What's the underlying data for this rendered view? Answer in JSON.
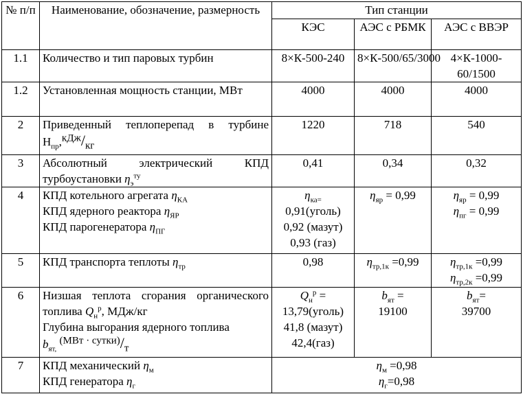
{
  "header": {
    "num": "№ п/п",
    "name": "Наименование, обозначение, размерность",
    "station_type": "Тип станции",
    "kes": "КЭС",
    "aes_rbmk": "АЭС с РБМК",
    "aes_vver": "АЭС с ВВЭР"
  },
  "rows": [
    {
      "num": "1.1",
      "name": "Количество и тип паровых турбин",
      "kes": "8×К-500-240",
      "rbmk": "8×К-500/65/3000",
      "vver": "4×К-1000-60/1500"
    },
    {
      "num": "1.2",
      "name": "Установленная мощность станции, МВт",
      "kes": "4000",
      "rbmk": "4000",
      "vver": "4000"
    },
    {
      "num": "2",
      "name": "Приведенный теплоперепад в турбине H",
      "name_sub": "пр",
      "name_sep": ",",
      "unit_num": "кДж",
      "unit_den": "кг",
      "kes": "1220",
      "rbmk": "718",
      "vver": "540"
    },
    {
      "num": "3",
      "name": "Абсолютный электрический КПД турбоустановки",
      "eta": "η",
      "eta_sub": "э",
      "eta_sup": "ту",
      "kes": "0,41",
      "rbmk": "0,34",
      "vver": "0,32"
    },
    {
      "num": "4",
      "lines": [
        {
          "t": "КПД котельного агрегата",
          "sub": "КА"
        },
        {
          "t": "КПД ядерного реактора",
          "sub": "ЯР"
        },
        {
          "t": "КПД парогенератора",
          "sub": "ПГ"
        }
      ],
      "kes": {
        "sub": "ка",
        "eq": "=",
        "vals": [
          "0,91(уголь)",
          "0,92 (мазут)",
          "0,93 (газ)"
        ]
      },
      "rbmk": {
        "sub": "яр",
        "val": "= 0,99"
      },
      "vver": [
        {
          "sub": "яр",
          "val": "= 0,99"
        },
        {
          "sub": "пг",
          "val": "= 0,99"
        }
      ]
    },
    {
      "num": "5",
      "name": "КПД транспорта теплоты",
      "name_sub": "тр",
      "kes": "0,98",
      "rbmk": {
        "sub": "тр,1к",
        "val": "=0,99"
      },
      "vver": [
        {
          "sub": "тр,1к",
          "val": "=0,99"
        },
        {
          "sub": "тр,2к",
          "val": "=0,99"
        }
      ]
    },
    {
      "num": "6",
      "name1": "Низшая теплота сгорания органического топлива",
      "q": "Q",
      "q_sub": "н",
      "q_sup": "р",
      "unit1": ", МДж/кг",
      "name2": "Глубина выгорания ядерного топлива",
      "b": "b",
      "b_sub": "ят,",
      "unit2_num": "(МВт · сутки)",
      "unit2_den": "т",
      "kes": {
        "eq": "=",
        "vals": [
          "13,79(уголь)",
          "41,8 (мазут)",
          "42,4(газ)"
        ]
      },
      "rbmk": {
        "sub": "ят",
        "eq": "=",
        "val": "19100"
      },
      "vver": {
        "sub": "ят",
        "eq": "=",
        "val": "39700"
      }
    },
    {
      "num": "7",
      "lines": [
        {
          "t": "КПД механический",
          "sub": "м"
        },
        {
          "t": "КПД генератора",
          "sub": "г"
        }
      ],
      "values": [
        {
          "sub": "м",
          "val": "=0,98"
        },
        {
          "sub": "г",
          "val": "=0,98"
        }
      ]
    }
  ]
}
